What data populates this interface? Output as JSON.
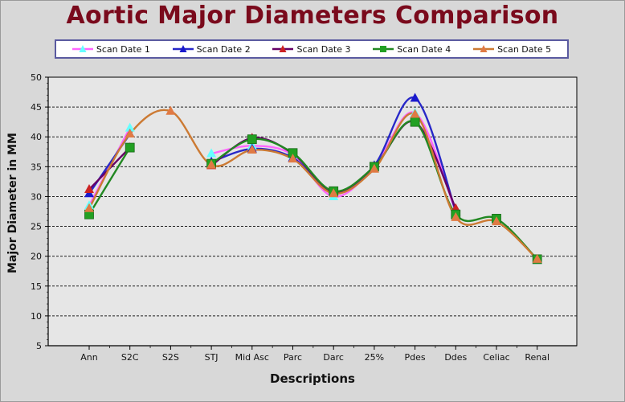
{
  "chart_data": {
    "type": "line",
    "title": "Aortic Major Diameters Comparison",
    "xlabel": "Descriptions",
    "ylabel": "Major Diameter in MM",
    "ylim": [
      5,
      50
    ],
    "yticks": [
      5,
      10,
      15,
      20,
      25,
      30,
      35,
      40,
      45,
      50
    ],
    "grid": true,
    "legend_position": "top",
    "categories": [
      "Ann",
      "S2C",
      "S2S",
      "STJ",
      "Mid Asc",
      "Parc",
      "Darc",
      "25%",
      "Pdes",
      "Ddes",
      "Celiac",
      "Renal"
    ],
    "series": [
      {
        "name": "Scan Date 1",
        "color": "#ff66ff",
        "marker": "triangle",
        "marker_color": "#66ffff",
        "values": [
          28.5,
          41.5,
          null,
          37.2,
          38.5,
          37.0,
          30.0,
          35.0,
          44.0,
          27.5,
          null,
          null
        ]
      },
      {
        "name": "Scan Date 2",
        "color": "#2828c8",
        "marker": "triangle",
        "marker_color": "#1a1acc",
        "values": [
          30.5,
          40.5,
          null,
          35.8,
          38.0,
          36.5,
          30.6,
          35.2,
          46.5,
          27.5,
          null,
          null
        ]
      },
      {
        "name": "Scan Date 3",
        "color": "#660066",
        "marker": "triangle",
        "marker_color": "#cc2222",
        "values": [
          31.2,
          38.2,
          null,
          35.2,
          39.8,
          37.2,
          30.8,
          35.0,
          42.5,
          28.0,
          null,
          null
        ]
      },
      {
        "name": "Scan Date 4",
        "color": "#228822",
        "marker": "square",
        "marker_color": "#22a022",
        "values": [
          27.0,
          38.2,
          null,
          35.5,
          39.6,
          37.3,
          30.9,
          35.0,
          42.5,
          27.0,
          26.3,
          19.5
        ]
      },
      {
        "name": "Scan Date 5",
        "color": "#cc7a33",
        "marker": "triangle",
        "marker_color": "#e07a44",
        "values": [
          28.0,
          40.5,
          44.3,
          35.3,
          37.8,
          36.3,
          30.5,
          34.6,
          43.8,
          26.5,
          25.8,
          19.5
        ]
      }
    ]
  }
}
